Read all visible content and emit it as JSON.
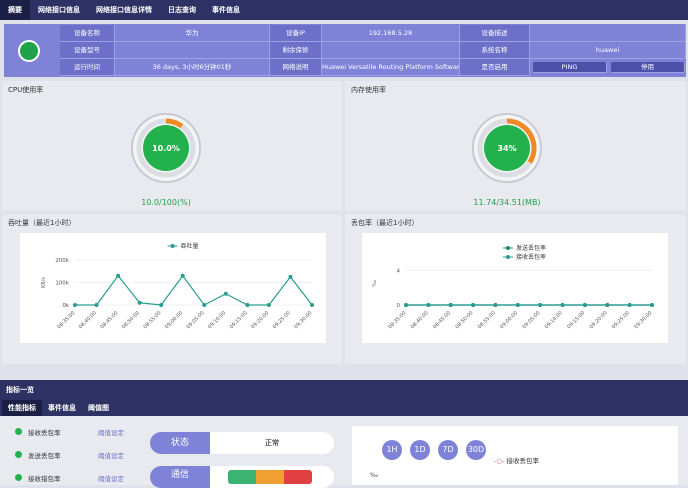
{
  "tabs": [
    "摘要",
    "网络接口信息",
    "网络接口信息详情",
    "日志查询",
    "事件信息"
  ],
  "info": [
    [
      {
        "label": "设备名称",
        "value": "华为"
      },
      {
        "label": "设备IP",
        "value": "192.168.5.28"
      },
      {
        "label": "设备描述"
      }
    ],
    [
      {
        "label": "设备型号"
      },
      {
        "label": "剩余保修"
      },
      {
        "label": "系统名称",
        "value": "huawei"
      }
    ],
    [
      {
        "label": "运行时间",
        "value": "36 days, 3小时6分钟01秒"
      },
      {
        "label": "网络说明",
        "value": "Huawei Versatile Routing Platform Software Ver"
      },
      {
        "label": "是否启用",
        "buttons": [
          "PING",
          "停用"
        ]
      }
    ]
  ],
  "cpu": {
    "title": "CPU使用率",
    "value": 10.0,
    "value_label": "10.0%",
    "detail": "10.0/100(%)"
  },
  "memory": {
    "title": "内存使用率",
    "value": 34,
    "value_label": "34%",
    "detail": "11.74/34.51(MB)"
  },
  "throughput": {
    "type": "line",
    "title": "吞吐量（最近1小时）",
    "y_label": "KB/s",
    "categories": [
      "08:35:00",
      "08:40:00",
      "08:45:00",
      "08:50:00",
      "08:55:00",
      "09:00:00",
      "09:05:00",
      "09:10:00",
      "09:15:00",
      "09:20:00",
      "09:25:00",
      "09:30:00"
    ],
    "series": [
      {
        "name": "吞吐量",
        "color": "#2a9d8f",
        "values": [
          0,
          0,
          130000,
          10000,
          0,
          130000,
          0,
          50000,
          0,
          0,
          125000,
          0
        ]
      }
    ],
    "ylim": [
      0,
      200000
    ],
    "yticks": [
      {
        "value": 0,
        "label": "0k"
      },
      {
        "value": 100000,
        "label": "100k"
      },
      {
        "value": 200000,
        "label": "200k"
      }
    ]
  },
  "loss": {
    "type": "line",
    "title": "丢包率（最近1小时）",
    "y_label": "‰",
    "categories": [
      "08:35:00",
      "08:40:00",
      "08:45:00",
      "08:50:00",
      "08:55:00",
      "09:00:00",
      "09:05:00",
      "09:10:00",
      "09:15:00",
      "09:20:00",
      "09:25:00",
      "09:30:00"
    ],
    "series": [
      {
        "name": "发送丢包率",
        "color": "#1f8a70",
        "values": [
          0,
          0,
          0,
          0,
          0,
          0,
          0,
          0,
          0,
          0,
          0,
          0
        ]
      },
      {
        "name": "接收丢包率",
        "color": "#2a9d8f",
        "values": [
          0,
          0,
          0,
          0,
          0,
          0,
          0,
          0,
          0,
          0,
          0,
          0
        ]
      }
    ],
    "ylim": [
      0,
      5
    ],
    "yticks": [
      0,
      4
    ]
  },
  "indicators": {
    "title": "指标一览",
    "tabs": [
      "性能指标",
      "事件信息",
      "阈值图"
    ],
    "items": [
      {
        "name": "接收丢包率",
        "action": "阈值设定"
      },
      {
        "name": "发送丢包率",
        "action": "阈值设定"
      },
      {
        "name": "接收错包率",
        "action": "阈值设定"
      }
    ],
    "status": {
      "label": "状态",
      "value": "正常"
    },
    "comm": {
      "label": "通信"
    },
    "ranges": [
      "1H",
      "1D",
      "7D",
      "30D"
    ],
    "legend": "接收丢包率",
    "y_label": "‰"
  }
}
